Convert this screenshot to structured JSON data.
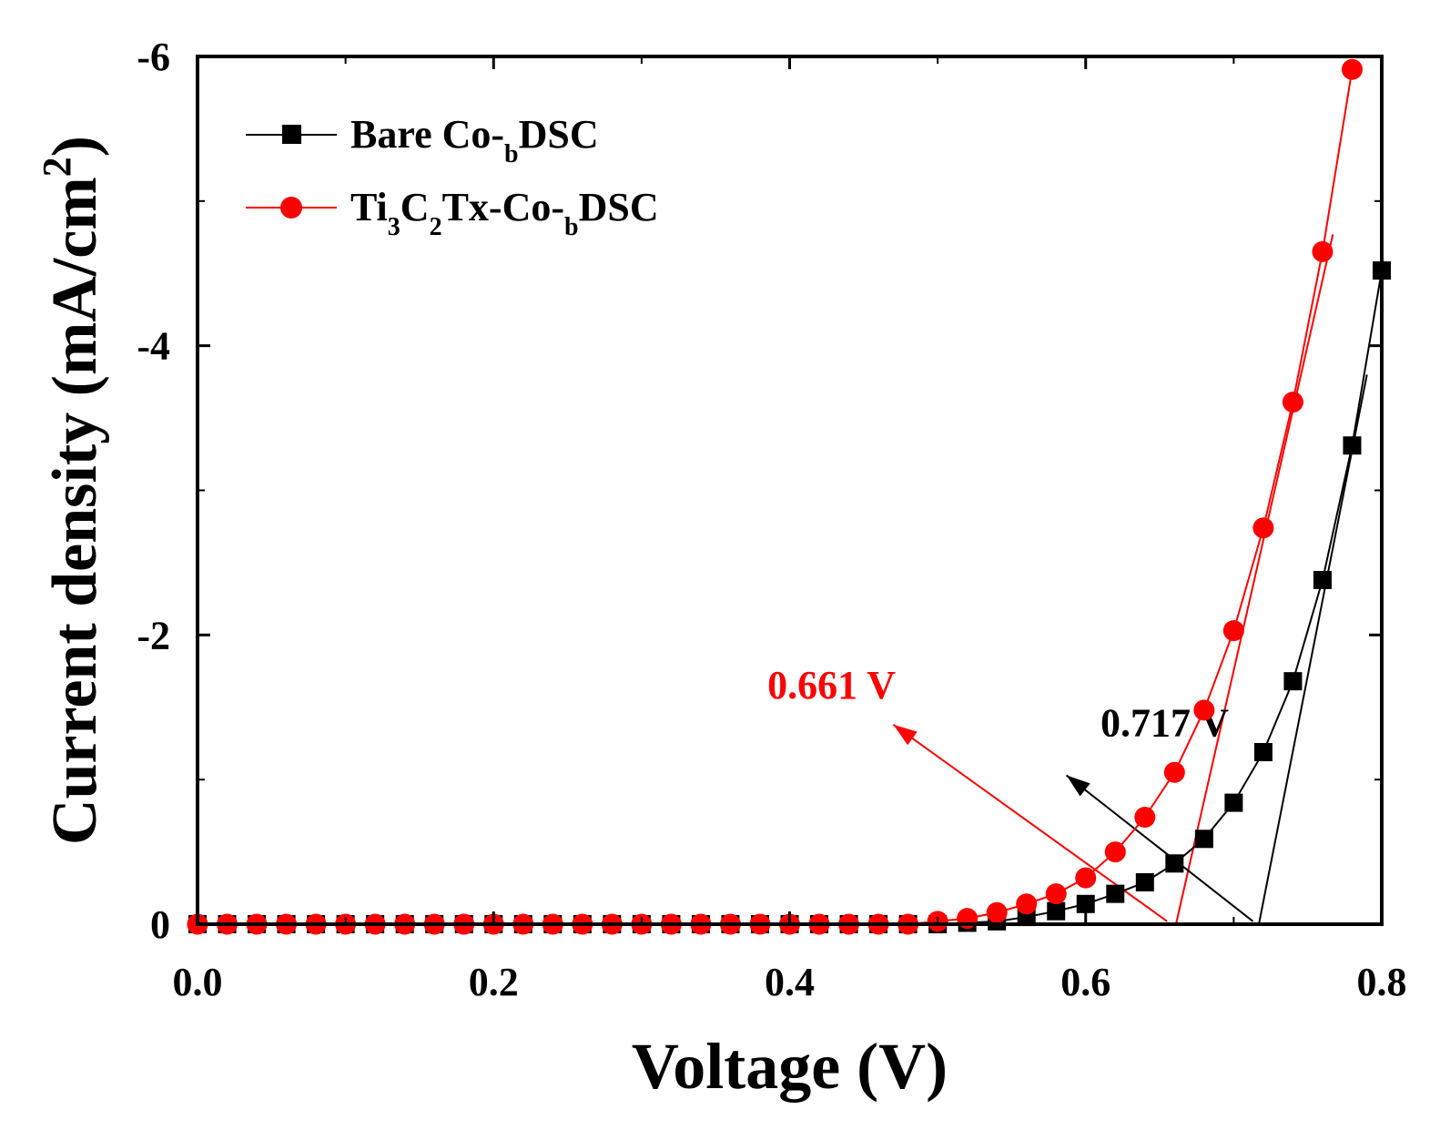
{
  "chart_data": {
    "type": "line",
    "xlabel": "Voltage (V)",
    "ylabel": "Current density (mA/cm²)",
    "ylabel_main": "Current density (mA/cm",
    "ylabel_sup": "2",
    "ylabel_close": ")",
    "xlim": [
      0.0,
      0.8
    ],
    "ylim": [
      0,
      -6
    ],
    "y_axis_reversed": true,
    "x_ticks": [
      0.0,
      0.2,
      0.4,
      0.6,
      0.8
    ],
    "x_tick_labels": [
      "0.0",
      "0.2",
      "0.4",
      "0.6",
      "0.8"
    ],
    "y_ticks": [
      0,
      -2,
      -4,
      -6
    ],
    "y_tick_labels": [
      "0",
      "-2",
      "-4",
      "-6"
    ],
    "grid": false,
    "legend_position": "top-left",
    "series": [
      {
        "name": "Bare Co-bDSC",
        "legend_parts": [
          "Bare Co-",
          "b",
          "DSC"
        ],
        "color": "#000000",
        "marker": "square",
        "x": [
          0.0,
          0.02,
          0.04,
          0.06,
          0.08,
          0.1,
          0.12,
          0.14,
          0.16,
          0.18,
          0.2,
          0.22,
          0.24,
          0.26,
          0.28,
          0.3,
          0.32,
          0.34,
          0.36,
          0.38,
          0.4,
          0.42,
          0.44,
          0.46,
          0.48,
          0.5,
          0.52,
          0.54,
          0.56,
          0.58,
          0.6,
          0.62,
          0.64,
          0.66,
          0.68,
          0.7,
          0.72,
          0.74,
          0.76,
          0.78,
          0.8
        ],
        "y": [
          0.0,
          0.0,
          0.0,
          0.0,
          0.0,
          0.0,
          0.0,
          0.0,
          0.0,
          0.0,
          0.0,
          0.0,
          0.0,
          0.0,
          0.0,
          0.0,
          0.0,
          0.0,
          0.0,
          0.0,
          0.0,
          0.0,
          0.0,
          0.0,
          0.0,
          0.0,
          -0.01,
          -0.02,
          -0.05,
          -0.09,
          -0.14,
          -0.21,
          -0.29,
          -0.42,
          -0.59,
          -0.84,
          -1.19,
          -1.68,
          -2.38,
          -3.31,
          -4.52
        ]
      },
      {
        "name": "Ti3C2Tx-Co-bDSC",
        "legend_parts": [
          "Ti",
          "3",
          "C",
          "2",
          "Tx-Co-",
          "b",
          "DSC"
        ],
        "color": "#ff0000",
        "marker": "circle",
        "x": [
          0.0,
          0.02,
          0.04,
          0.06,
          0.08,
          0.1,
          0.12,
          0.14,
          0.16,
          0.18,
          0.2,
          0.22,
          0.24,
          0.26,
          0.28,
          0.3,
          0.32,
          0.34,
          0.36,
          0.38,
          0.4,
          0.42,
          0.44,
          0.46,
          0.48,
          0.5,
          0.52,
          0.54,
          0.56,
          0.58,
          0.6,
          0.62,
          0.64,
          0.66,
          0.68,
          0.7,
          0.72,
          0.74,
          0.76,
          0.78
        ],
        "y": [
          0.0,
          0.0,
          0.0,
          0.0,
          0.0,
          0.0,
          0.0,
          0.0,
          0.0,
          0.0,
          0.0,
          0.0,
          0.0,
          0.0,
          0.0,
          0.0,
          0.0,
          0.0,
          0.0,
          0.0,
          0.0,
          0.0,
          0.0,
          0.0,
          0.0,
          -0.02,
          -0.04,
          -0.08,
          -0.14,
          -0.21,
          -0.32,
          -0.5,
          -0.74,
          -1.05,
          -1.48,
          -2.03,
          -2.74,
          -3.61,
          -4.65,
          -5.91
        ]
      }
    ],
    "tangent_lines": [
      {
        "color": "#000000",
        "from": [
          0.717,
          0.0
        ],
        "to": [
          0.79,
          -3.8
        ]
      },
      {
        "color": "#ff0000",
        "from": [
          0.661,
          0.0
        ],
        "to": [
          0.767,
          -4.77
        ]
      }
    ],
    "annotations": [
      {
        "text": "0.661 V",
        "color": "#ff0000",
        "x": 0.385,
        "y": -1.56,
        "arrow_from": [
          0.655,
          -0.02
        ],
        "arrow_to": [
          0.47,
          -1.38
        ]
      },
      {
        "text": "0.717 V",
        "color": "#000000",
        "x": 0.61,
        "y": -1.3,
        "arrow_from": [
          0.713,
          -0.02
        ],
        "arrow_to": [
          0.587,
          -1.03
        ]
      }
    ]
  }
}
